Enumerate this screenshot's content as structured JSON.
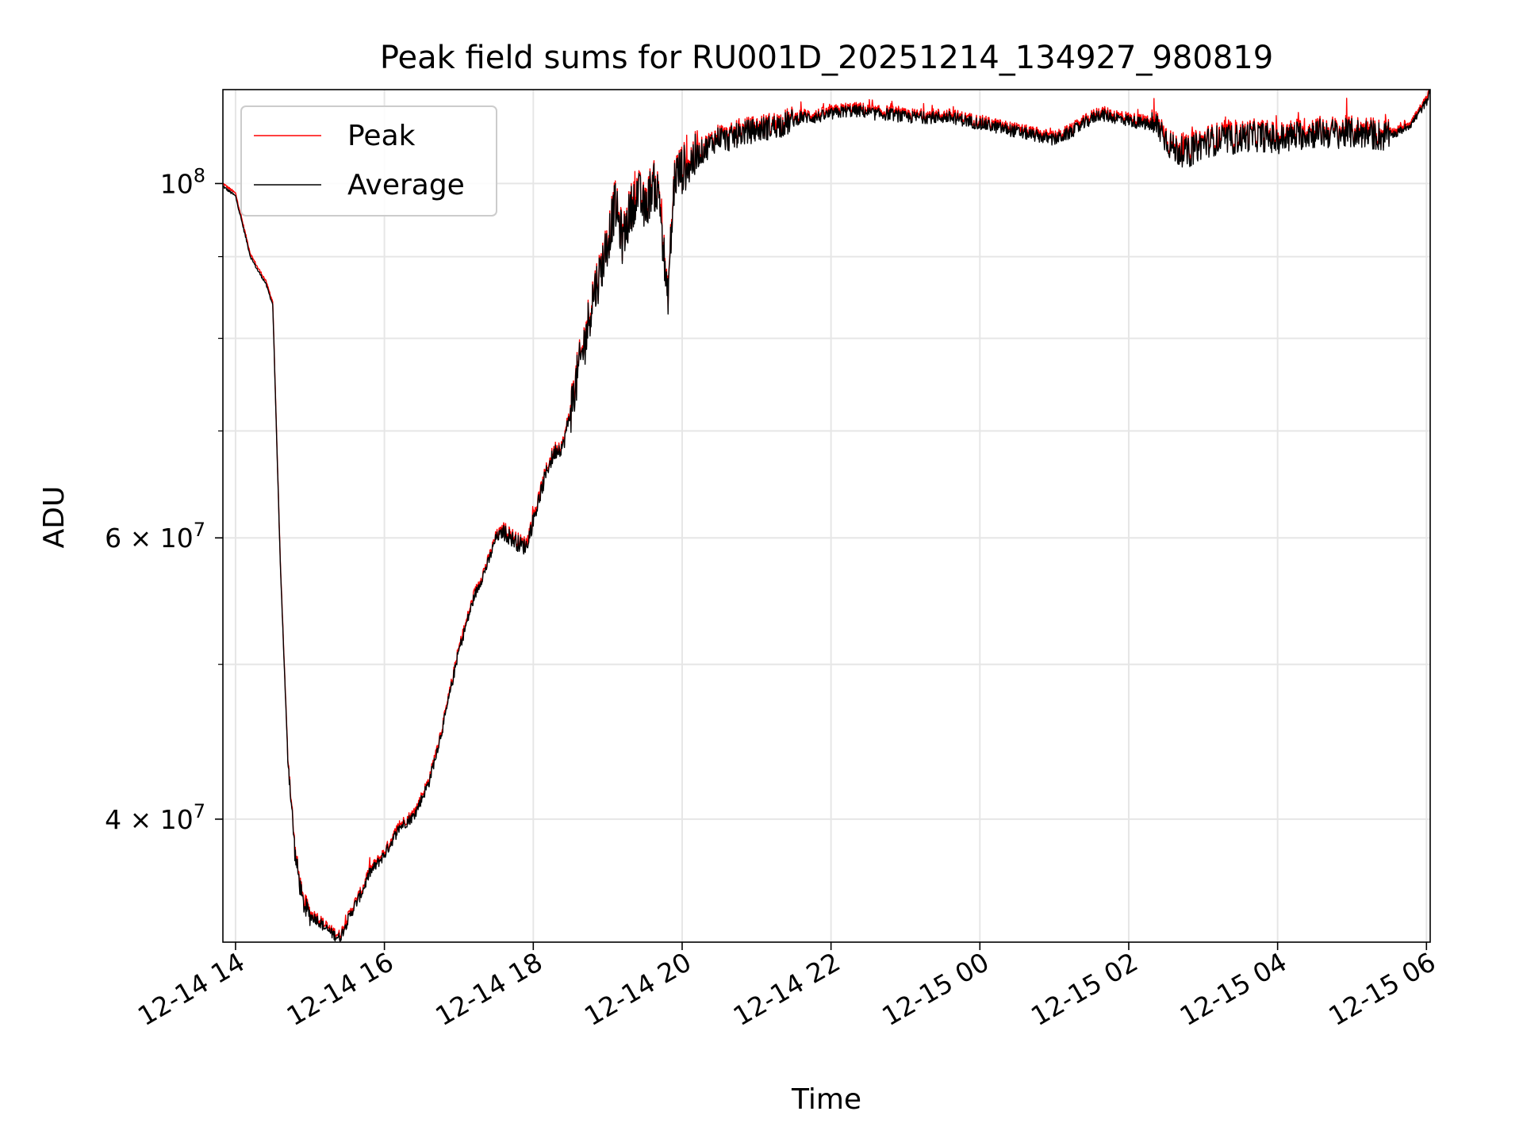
{
  "chart_data": {
    "type": "line",
    "title": "Peak field sums for RU001D_20251214_134927_980819",
    "xlabel": "Time",
    "ylabel": "ADU",
    "yscale": "log",
    "grid": true,
    "legend_position": "upper-left",
    "xlim_hours": [
      -0.17,
      16.05
    ],
    "ylim": [
      33500000,
      114500000
    ],
    "x_ticks": [
      {
        "hour": 0,
        "label": "12-14 14"
      },
      {
        "hour": 2,
        "label": "12-14 16"
      },
      {
        "hour": 4,
        "label": "12-14 18"
      },
      {
        "hour": 6,
        "label": "12-14 20"
      },
      {
        "hour": 8,
        "label": "12-14 22"
      },
      {
        "hour": 10,
        "label": "12-15 00"
      },
      {
        "hour": 12,
        "label": "12-15 02"
      },
      {
        "hour": 14,
        "label": "12-15 04"
      },
      {
        "hour": 16,
        "label": "12-15 06"
      }
    ],
    "y_major_ticks": [
      {
        "value": 40000000,
        "base": "4 × 10",
        "exp": "7"
      },
      {
        "value": 60000000,
        "base": "6 × 10",
        "exp": "7"
      },
      {
        "value": 100000000,
        "base": "10",
        "exp": "8"
      }
    ],
    "y_minor_ticks": [
      50000000,
      70000000,
      80000000,
      90000000
    ],
    "series_meta": [
      {
        "name": "Peak",
        "color": "#ff0000"
      },
      {
        "name": "Average",
        "color": "#000000"
      }
    ],
    "x_hours": [
      -0.17,
      0.0,
      0.1,
      0.2,
      0.3,
      0.4,
      0.5,
      0.6,
      0.7,
      0.8,
      0.9,
      1.0,
      1.1,
      1.2,
      1.3,
      1.4,
      1.5,
      1.6,
      1.7,
      1.8,
      2.0,
      2.2,
      2.4,
      2.6,
      2.8,
      3.0,
      3.2,
      3.4,
      3.5,
      3.6,
      3.7,
      3.8,
      3.9,
      4.0,
      4.1,
      4.2,
      4.3,
      4.4,
      4.5,
      4.6,
      4.7,
      4.8,
      4.9,
      5.0,
      5.1,
      5.2,
      5.3,
      5.4,
      5.5,
      5.6,
      5.7,
      5.8,
      5.9,
      6.0,
      6.1,
      6.2,
      6.3,
      6.4,
      6.5,
      6.6,
      6.8,
      7.0,
      7.2,
      7.4,
      7.6,
      7.8,
      8.0,
      8.2,
      8.4,
      8.6,
      8.8,
      9.0,
      9.2,
      9.4,
      9.6,
      9.8,
      10.0,
      10.2,
      10.4,
      10.6,
      10.8,
      11.0,
      11.2,
      11.4,
      11.6,
      11.8,
      12.0,
      12.2,
      12.4,
      12.6,
      12.8,
      13.0,
      13.2,
      13.4,
      13.6,
      13.8,
      14.0,
      14.2,
      14.4,
      14.6,
      14.8,
      15.0,
      15.2,
      15.4,
      15.6,
      15.8,
      16.0,
      16.05
    ],
    "average": [
      99600000,
      98200000,
      94000000,
      90000000,
      88200000,
      86700000,
      84000000,
      58000000,
      44000000,
      38000000,
      35500000,
      34800000,
      34600000,
      34200000,
      33900000,
      33700000,
      34500000,
      35300000,
      36000000,
      37000000,
      38000000,
      39500000,
      40200000,
      42200000,
      46000000,
      51000000,
      55000000,
      58000000,
      60000000,
      60500000,
      60000000,
      59500000,
      59200000,
      61500000,
      64000000,
      66500000,
      68000000,
      68500000,
      72000000,
      76000000,
      80000000,
      85000000,
      88000000,
      92000000,
      97000000,
      92000000,
      96000000,
      99000000,
      96000000,
      100000000,
      98000000,
      84000000,
      101000000,
      102000000,
      103000000,
      104000000,
      105000000,
      106000000,
      107000000,
      106500000,
      107500000,
      108000000,
      108500000,
      109000000,
      110000000,
      110000000,
      110500000,
      111000000,
      111000000,
      110500000,
      110500000,
      110000000,
      110000000,
      110000000,
      110000000,
      109500000,
      109000000,
      108500000,
      108000000,
      107500000,
      107000000,
      106500000,
      107500000,
      109000000,
      110500000,
      110000000,
      109500000,
      109000000,
      108500000,
      105000000,
      104500000,
      106000000,
      106500000,
      106500000,
      107000000,
      107000000,
      106500000,
      107000000,
      107500000,
      107500000,
      107500000,
      107500000,
      107500000,
      107000000,
      107500000,
      109000000,
      112500000,
      114500000
    ],
    "annotations": []
  }
}
